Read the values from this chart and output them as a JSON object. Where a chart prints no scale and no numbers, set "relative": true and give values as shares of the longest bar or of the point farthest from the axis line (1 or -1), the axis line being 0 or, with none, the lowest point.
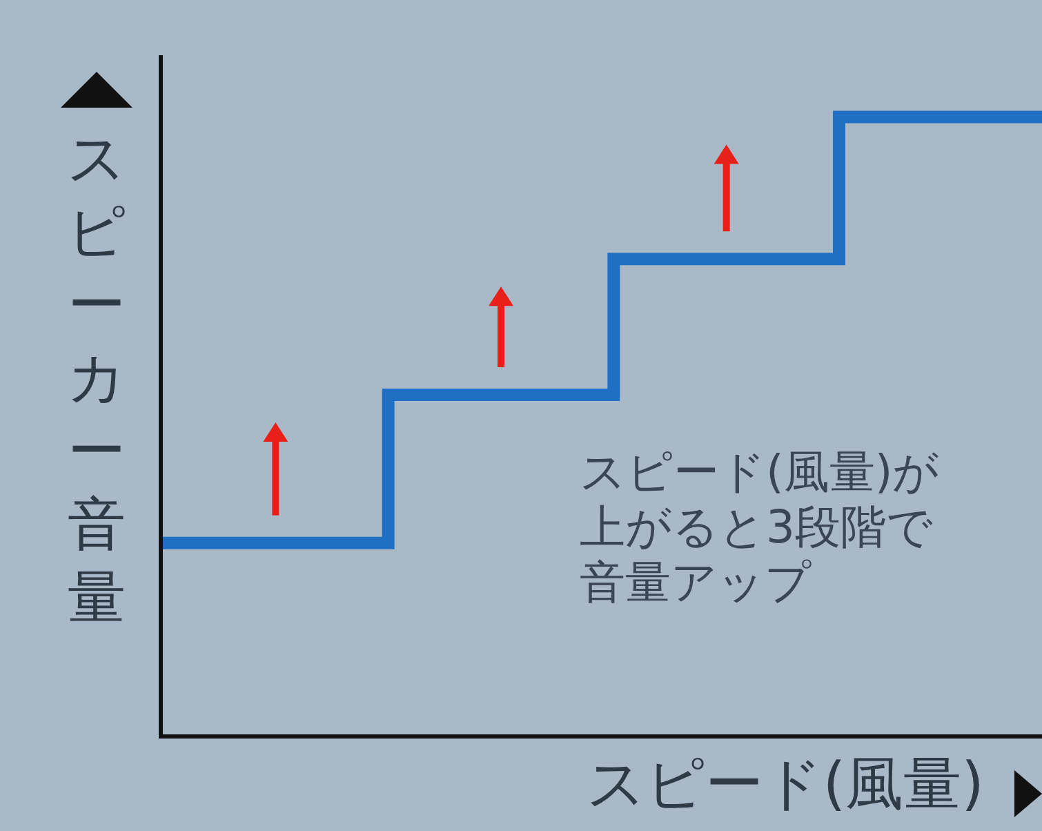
{
  "chart_data": {
    "type": "step",
    "relative": true,
    "xlabel": "スピード(風量)",
    "ylabel": "スピーカー音量",
    "categories": [
      null,
      null,
      null,
      null,
      null
    ],
    "series": [
      {
        "color": "#1f6fc4",
        "values": [
          0.31,
          0.55,
          0.77,
          1,
          1
        ]
      }
    ],
    "annotations": [
      "スピード(風量)が上がると3段階で音量アップ"
    ],
    "grid": false,
    "legend": false,
    "line_style": "solid"
  }
}
